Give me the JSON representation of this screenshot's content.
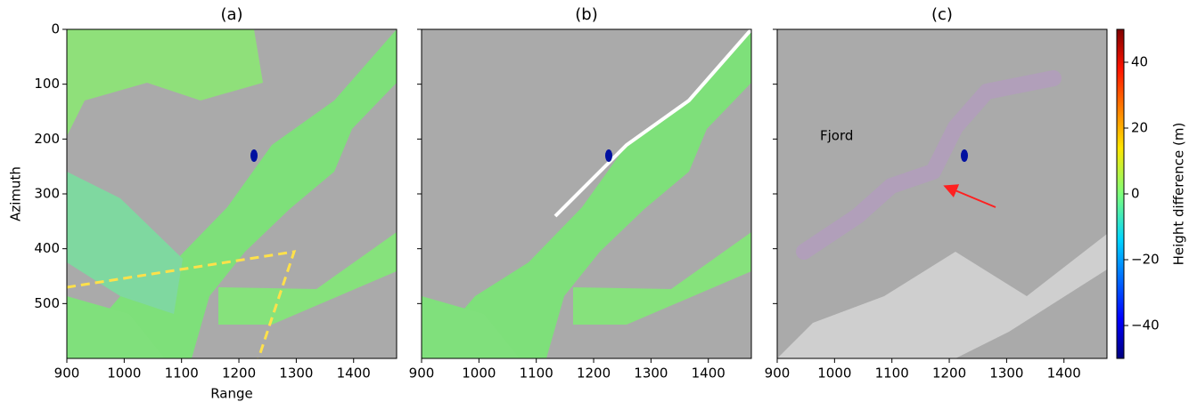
{
  "chart_data": [
    {
      "type": "heatmap",
      "title": "(a)",
      "xlabel": "Range",
      "ylabel": "Azimuth",
      "xlim": [
        900,
        1475
      ],
      "ylim": [
        600,
        0
      ],
      "xticks": [
        900,
        1000,
        1100,
        1200,
        1300,
        1400
      ],
      "yticks": [
        0,
        100,
        200,
        300,
        400,
        500
      ],
      "ytick_labels": true
    },
    {
      "type": "heatmap",
      "title": "(b)",
      "xlim": [
        900,
        1475
      ],
      "ylim": [
        600,
        0
      ],
      "xticks": [
        900,
        1000,
        1100,
        1200,
        1300,
        1400
      ],
      "yticks": [
        0,
        100,
        200,
        300,
        400,
        500
      ],
      "ytick_labels": false
    },
    {
      "type": "heatmap",
      "title": "(c)",
      "annotation": "Fjord",
      "xlim": [
        900,
        1475
      ],
      "ylim": [
        600,
        0
      ],
      "xticks": [
        900,
        1000,
        1100,
        1200,
        1300,
        1400
      ],
      "yticks": [
        0,
        100,
        200,
        300,
        400,
        500
      ],
      "ytick_labels": false,
      "colorbar": {
        "label": "Height difference (m)",
        "lim": [
          -50,
          50
        ],
        "ticks": [
          {
            "value": -40,
            "label": "−40"
          },
          {
            "value": -20,
            "label": "−20"
          },
          0,
          20,
          40
        ]
      }
    }
  ]
}
